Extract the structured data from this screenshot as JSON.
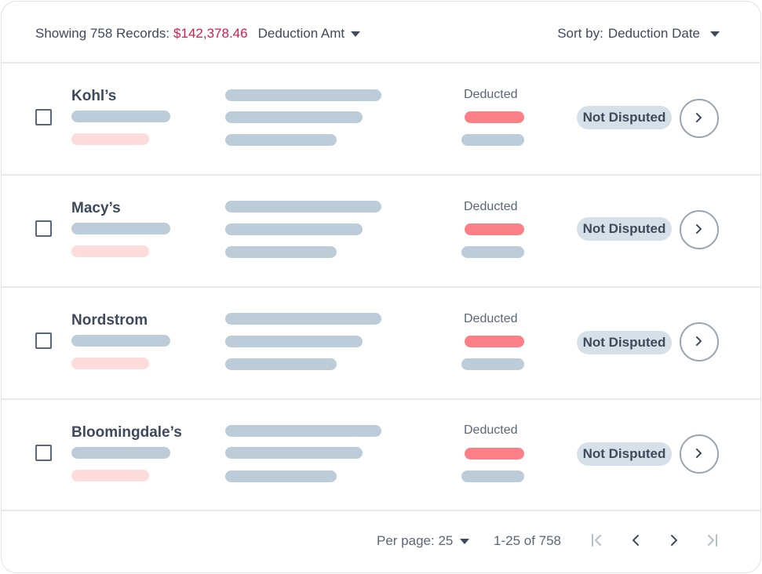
{
  "header": {
    "showing_label": "Showing 758 Records:",
    "total_amount": "$142,378.46",
    "filter_label": "Deduction Amt",
    "sort_label": "Sort by:",
    "sort_value": "Deduction Date"
  },
  "rows": [
    {
      "name": "Kohl’s",
      "status_label": "Deducted",
      "badge": "Not Disputed"
    },
    {
      "name": "Macy’s",
      "status_label": "Deducted",
      "badge": "Not Disputed"
    },
    {
      "name": "Nordstrom",
      "status_label": "Deducted",
      "badge": "Not Disputed"
    },
    {
      "name": "Bloomingdale’s",
      "status_label": "Deducted",
      "badge": "Not Disputed"
    }
  ],
  "footer": {
    "per_page_label": "Per page: 25",
    "range_label": "1-25 of 758"
  },
  "colors": {
    "accent_amount": "#d81b4a",
    "placeholder_bar": "#bccdd9",
    "placeholder_pink": "#ffdcdc",
    "deducted_bar": "#fb7f86",
    "badge_bg": "#d6e0e8"
  },
  "icons": {
    "filter_caret": "caret-down-icon",
    "row_action": "chevron-right-icon",
    "first_page": "first-page-icon",
    "prev_page": "chevron-left-icon",
    "next_page": "chevron-right-icon",
    "last_page": "last-page-icon"
  }
}
